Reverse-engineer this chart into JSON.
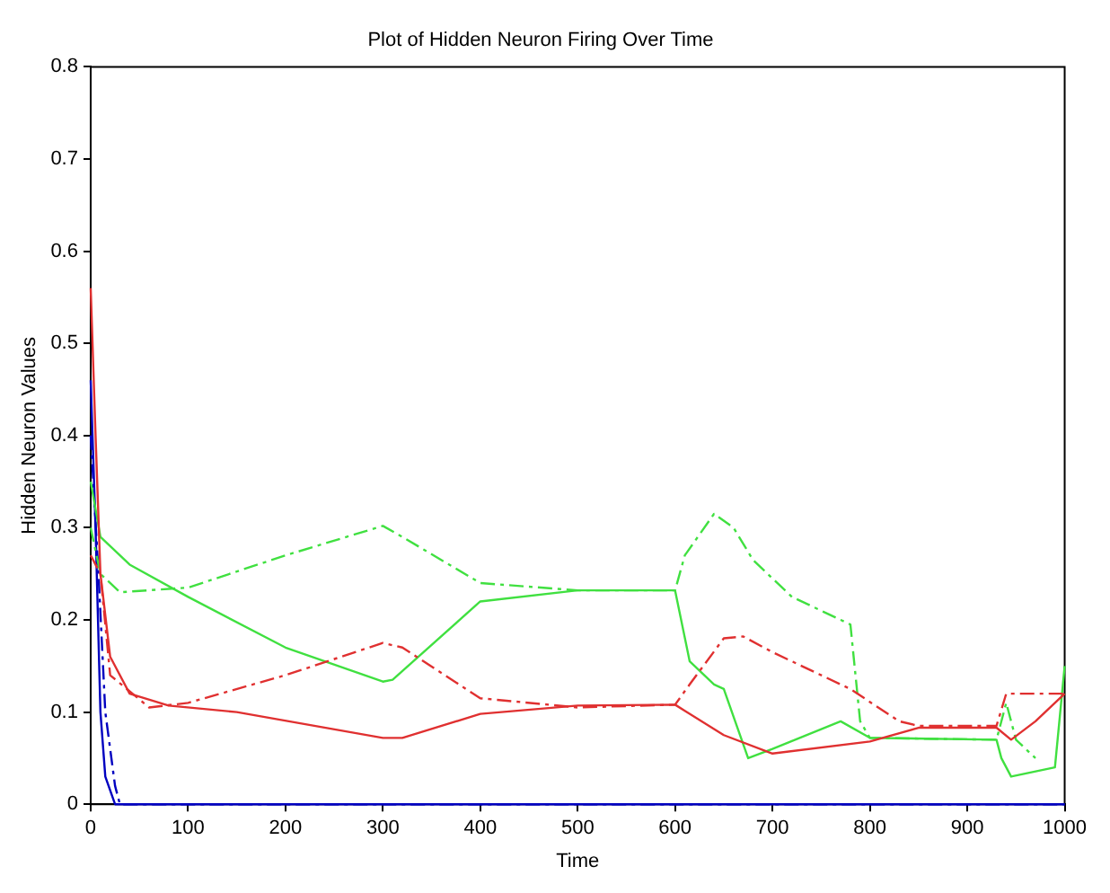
{
  "chart_data": {
    "type": "line",
    "title": "Plot of Hidden Neuron Firing Over Time",
    "xlabel": "Time",
    "ylabel": "Hidden Neuron Values",
    "xlim": [
      0,
      1000
    ],
    "xticks": [
      0,
      100,
      200,
      300,
      400,
      500,
      600,
      700,
      800,
      900,
      1000
    ],
    "ylim": [
      0,
      0.8
    ],
    "yticks": [
      0,
      0.1,
      0.2,
      0.3,
      0.4,
      0.5,
      0.6,
      0.7,
      0.8
    ],
    "grid": false,
    "legend": false,
    "marker": "none",
    "series": [
      {
        "color": "#e03030",
        "line_style": "solid",
        "x": [
          0,
          5,
          10,
          20,
          40,
          80,
          150,
          300,
          320,
          400,
          500,
          600,
          650,
          700,
          800,
          850,
          930,
          945,
          970,
          1000
        ],
        "values": [
          0.56,
          0.4,
          0.25,
          0.16,
          0.12,
          0.107,
          0.1,
          0.072,
          0.072,
          0.098,
          0.107,
          0.108,
          0.075,
          0.055,
          0.068,
          0.083,
          0.083,
          0.07,
          0.09,
          0.12
        ]
      },
      {
        "color": "#e03030",
        "line_style": "dashed",
        "x": [
          0,
          10,
          20,
          60,
          100,
          200,
          300,
          320,
          400,
          500,
          600,
          615,
          650,
          670,
          700,
          780,
          830,
          850,
          930,
          940,
          1000
        ],
        "values": [
          0.27,
          0.25,
          0.14,
          0.105,
          0.11,
          0.14,
          0.175,
          0.17,
          0.115,
          0.105,
          0.108,
          0.13,
          0.18,
          0.182,
          0.165,
          0.125,
          0.09,
          0.085,
          0.085,
          0.12,
          0.12
        ]
      },
      {
        "color": "#40e040",
        "line_style": "solid",
        "x": [
          0,
          10,
          40,
          100,
          200,
          300,
          310,
          400,
          500,
          600,
          615,
          640,
          650,
          675,
          700,
          770,
          800,
          930,
          935,
          945,
          990,
          1000
        ],
        "values": [
          0.35,
          0.29,
          0.26,
          0.225,
          0.17,
          0.133,
          0.135,
          0.22,
          0.232,
          0.232,
          0.155,
          0.13,
          0.125,
          0.05,
          0.06,
          0.09,
          0.072,
          0.07,
          0.05,
          0.03,
          0.04,
          0.15
        ]
      },
      {
        "color": "#40e040",
        "line_style": "dashed",
        "x": [
          0,
          10,
          30,
          100,
          200,
          300,
          320,
          400,
          500,
          600,
          610,
          640,
          660,
          680,
          720,
          770,
          780,
          790,
          800,
          930,
          940,
          950,
          970
        ],
        "values": [
          0.3,
          0.25,
          0.23,
          0.235,
          0.27,
          0.302,
          0.29,
          0.24,
          0.232,
          0.232,
          0.27,
          0.315,
          0.3,
          0.265,
          0.225,
          0.2,
          0.195,
          0.09,
          0.072,
          0.07,
          0.11,
          0.07,
          0.05
        ]
      },
      {
        "color": "#0000c0",
        "line_style": "solid",
        "x": [
          0,
          5,
          10,
          15,
          25,
          1000
        ],
        "values": [
          0.46,
          0.3,
          0.1,
          0.03,
          0,
          0
        ]
      },
      {
        "color": "#0000c0",
        "line_style": "dashed",
        "x": [
          0,
          8,
          15,
          25,
          30,
          1000
        ],
        "values": [
          0.4,
          0.25,
          0.1,
          0.02,
          0,
          0
        ]
      }
    ]
  }
}
